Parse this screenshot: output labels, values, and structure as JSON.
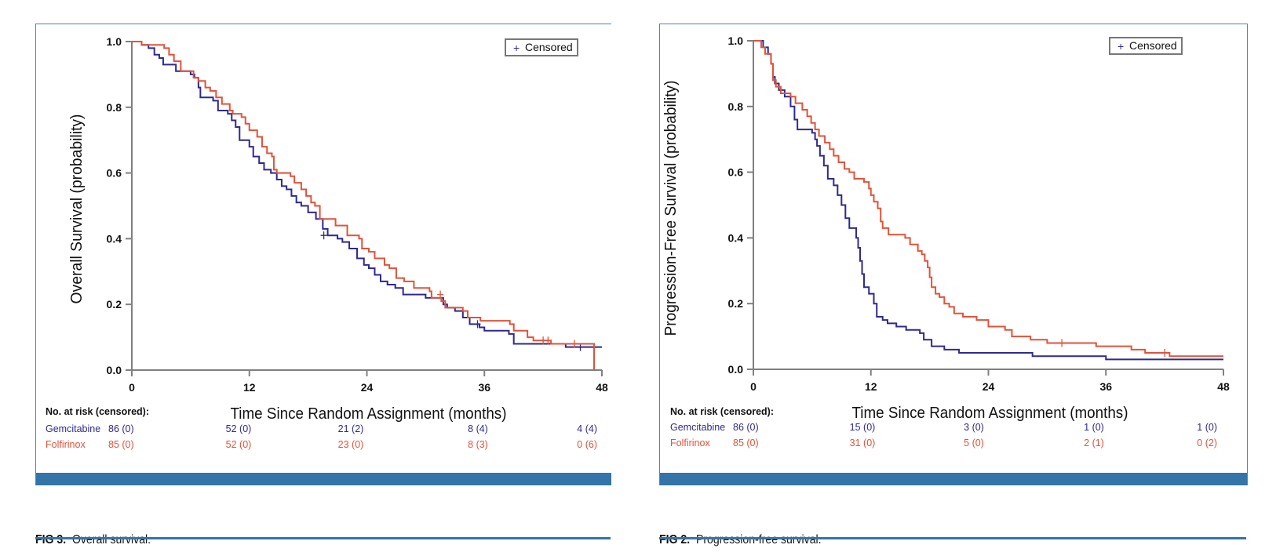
{
  "colors": {
    "gemcitabine": "#2e2a8c",
    "folfirinox": "#e0533a",
    "frame": "#4a86b8",
    "bar": "#3374a9",
    "axis": "#808080"
  },
  "figures": [
    {
      "caption_label": "FIG 3.",
      "caption_text": "Overall survival.",
      "legend_label": "Censored",
      "legend_symbol": "+",
      "risk_header": "No. at risk (censored):"
    },
    {
      "caption_label": "FIG 2.",
      "caption_text": "Progression-free survival.",
      "legend_label": "Censored",
      "legend_symbol": "+",
      "risk_header": "No. at risk (censored):"
    }
  ],
  "chart_data": [
    {
      "type": "line",
      "subtype": "kaplan-meier-step",
      "title": "Overall survival",
      "xlabel": "Time Since Random Assignment (months)",
      "ylabel": "Overall Survival (probability)",
      "xlim": [
        0,
        48
      ],
      "ylim": [
        0,
        1.0
      ],
      "xticks": [
        0,
        12,
        24,
        36,
        48
      ],
      "yticks": [
        0.0,
        0.2,
        0.4,
        0.6,
        0.8,
        1.0
      ],
      "ytick_labels": [
        "0.0",
        "0.2",
        "0.4",
        "0.6",
        "0.8",
        "1.0"
      ],
      "legend": {
        "entries": [
          "+ Censored"
        ],
        "position": "top-right"
      },
      "grid": false,
      "series": [
        {
          "name": "Gemcitabine",
          "color_key": "gemcitabine",
          "steps": [
            [
              0,
              1.0
            ],
            [
              1.0,
              0.99
            ],
            [
              1.7,
              0.98
            ],
            [
              2.3,
              0.96
            ],
            [
              2.8,
              0.95
            ],
            [
              3.2,
              0.93
            ],
            [
              4.5,
              0.91
            ],
            [
              6.0,
              0.9
            ],
            [
              6.4,
              0.89
            ],
            [
              6.8,
              0.86
            ],
            [
              7.0,
              0.83
            ],
            [
              8.3,
              0.82
            ],
            [
              8.8,
              0.79
            ],
            [
              9.8,
              0.78
            ],
            [
              10.2,
              0.76
            ],
            [
              10.6,
              0.74
            ],
            [
              11.0,
              0.7
            ],
            [
              12.0,
              0.68
            ],
            [
              12.4,
              0.65
            ],
            [
              13.0,
              0.63
            ],
            [
              13.5,
              0.61
            ],
            [
              14.2,
              0.6
            ],
            [
              14.8,
              0.58
            ],
            [
              15.3,
              0.56
            ],
            [
              15.8,
              0.55
            ],
            [
              16.3,
              0.53
            ],
            [
              16.8,
              0.51
            ],
            [
              17.3,
              0.5
            ],
            [
              18.0,
              0.48
            ],
            [
              18.8,
              0.46
            ],
            [
              19.5,
              0.43
            ],
            [
              20.0,
              0.41
            ],
            [
              21.0,
              0.4
            ],
            [
              21.5,
              0.39
            ],
            [
              22.2,
              0.37
            ],
            [
              23.0,
              0.34
            ],
            [
              23.7,
              0.32
            ],
            [
              24.2,
              0.31
            ],
            [
              24.8,
              0.29
            ],
            [
              25.4,
              0.27
            ],
            [
              26.1,
              0.26
            ],
            [
              26.9,
              0.25
            ],
            [
              27.7,
              0.23
            ],
            [
              28.8,
              0.23
            ],
            [
              30.0,
              0.22
            ],
            [
              31.5,
              0.22
            ],
            [
              31.8,
              0.2
            ],
            [
              32.2,
              0.19
            ],
            [
              33.0,
              0.18
            ],
            [
              33.8,
              0.16
            ],
            [
              34.5,
              0.14
            ],
            [
              35.5,
              0.13
            ],
            [
              36.0,
              0.12
            ],
            [
              38.5,
              0.11
            ],
            [
              39.0,
              0.08
            ],
            [
              44.3,
              0.07
            ],
            [
              48.0,
              0.07
            ]
          ],
          "censored": [
            [
              19.6,
              0.41
            ],
            [
              35.3,
              0.14
            ],
            [
              45.8,
              0.07
            ]
          ],
          "at_risk": [
            "86 (0)",
            "52 (0)",
            "21 (2)",
            "8 (4)",
            "4 (4)"
          ]
        },
        {
          "name": "Folfirinox",
          "color_key": "folfirinox",
          "steps": [
            [
              0,
              1.0
            ],
            [
              1.0,
              0.99
            ],
            [
              3.3,
              0.98
            ],
            [
              3.8,
              0.96
            ],
            [
              4.3,
              0.94
            ],
            [
              5.0,
              0.91
            ],
            [
              6.3,
              0.89
            ],
            [
              6.8,
              0.88
            ],
            [
              7.5,
              0.86
            ],
            [
              8.0,
              0.85
            ],
            [
              8.6,
              0.83
            ],
            [
              9.2,
              0.81
            ],
            [
              10.0,
              0.79
            ],
            [
              10.3,
              0.78
            ],
            [
              11.2,
              0.77
            ],
            [
              11.6,
              0.75
            ],
            [
              12.0,
              0.73
            ],
            [
              12.8,
              0.71
            ],
            [
              13.3,
              0.68
            ],
            [
              13.8,
              0.66
            ],
            [
              14.3,
              0.65
            ],
            [
              14.5,
              0.61
            ],
            [
              14.8,
              0.6
            ],
            [
              16.2,
              0.59
            ],
            [
              16.6,
              0.57
            ],
            [
              17.3,
              0.55
            ],
            [
              17.8,
              0.53
            ],
            [
              18.3,
              0.51
            ],
            [
              18.7,
              0.5
            ],
            [
              19.2,
              0.46
            ],
            [
              20.8,
              0.44
            ],
            [
              22.0,
              0.41
            ],
            [
              23.2,
              0.4
            ],
            [
              23.5,
              0.37
            ],
            [
              24.2,
              0.36
            ],
            [
              24.8,
              0.34
            ],
            [
              25.8,
              0.32
            ],
            [
              26.3,
              0.31
            ],
            [
              27.0,
              0.28
            ],
            [
              27.8,
              0.27
            ],
            [
              28.8,
              0.25
            ],
            [
              30.4,
              0.24
            ],
            [
              30.6,
              0.22
            ],
            [
              31.6,
              0.21
            ],
            [
              32.0,
              0.19
            ],
            [
              33.8,
              0.18
            ],
            [
              34.3,
              0.16
            ],
            [
              35.6,
              0.15
            ],
            [
              38.6,
              0.14
            ],
            [
              39.0,
              0.12
            ],
            [
              40.4,
              0.1
            ],
            [
              41.0,
              0.09
            ],
            [
              42.8,
              0.08
            ],
            [
              47.2,
              0.08
            ],
            [
              47.2,
              0.0
            ]
          ],
          "censored": [
            [
              31.5,
              0.23
            ],
            [
              42.0,
              0.09
            ],
            [
              42.5,
              0.09
            ],
            [
              45.2,
              0.08
            ]
          ],
          "at_risk": [
            "85 (0)",
            "52 (0)",
            "23 (0)",
            "8 (3)",
            "0 (6)"
          ]
        }
      ]
    },
    {
      "type": "line",
      "subtype": "kaplan-meier-step",
      "title": "Progression-free survival",
      "xlabel": "Time Since Random Assignment (months)",
      "ylabel": "Progression-Free Survival (probability)",
      "xlim": [
        0,
        48
      ],
      "ylim": [
        0,
        1.0
      ],
      "xticks": [
        0,
        12,
        24,
        36,
        48
      ],
      "yticks": [
        0.0,
        0.2,
        0.4,
        0.6,
        0.8,
        1.0
      ],
      "ytick_labels": [
        "0.0",
        "0.2",
        "0.4",
        "0.6",
        "0.8",
        "1.0"
      ],
      "legend": {
        "entries": [
          "+ Censored"
        ],
        "position": "top-right"
      },
      "grid": false,
      "series": [
        {
          "name": "Gemcitabine",
          "color_key": "gemcitabine",
          "steps": [
            [
              0,
              1.0
            ],
            [
              1.0,
              0.98
            ],
            [
              1.5,
              0.96
            ],
            [
              1.8,
              0.93
            ],
            [
              2.0,
              0.89
            ],
            [
              2.2,
              0.87
            ],
            [
              2.6,
              0.85
            ],
            [
              3.2,
              0.83
            ],
            [
              3.8,
              0.8
            ],
            [
              4.2,
              0.76
            ],
            [
              4.5,
              0.73
            ],
            [
              6.0,
              0.72
            ],
            [
              6.3,
              0.7
            ],
            [
              6.5,
              0.68
            ],
            [
              6.8,
              0.65
            ],
            [
              7.2,
              0.62
            ],
            [
              7.6,
              0.58
            ],
            [
              8.2,
              0.56
            ],
            [
              8.6,
              0.53
            ],
            [
              9.0,
              0.5
            ],
            [
              9.4,
              0.46
            ],
            [
              9.8,
              0.43
            ],
            [
              10.5,
              0.4
            ],
            [
              10.7,
              0.37
            ],
            [
              10.9,
              0.33
            ],
            [
              11.1,
              0.29
            ],
            [
              11.3,
              0.25
            ],
            [
              11.8,
              0.23
            ],
            [
              12.3,
              0.2
            ],
            [
              12.6,
              0.16
            ],
            [
              13.2,
              0.15
            ],
            [
              13.7,
              0.14
            ],
            [
              14.6,
              0.13
            ],
            [
              15.6,
              0.12
            ],
            [
              17.0,
              0.11
            ],
            [
              17.4,
              0.09
            ],
            [
              18.2,
              0.07
            ],
            [
              19.5,
              0.06
            ],
            [
              21.0,
              0.05
            ],
            [
              28.5,
              0.04
            ],
            [
              36.0,
              0.03
            ],
            [
              48.0,
              0.03
            ]
          ],
          "censored": [],
          "at_risk": [
            "86 (0)",
            "15 (0)",
            "3 (0)",
            "1 (0)",
            "1 (0)"
          ]
        },
        {
          "name": "Folfirinox",
          "color_key": "folfirinox",
          "steps": [
            [
              0,
              1.0
            ],
            [
              0.8,
              0.98
            ],
            [
              1.2,
              0.96
            ],
            [
              1.8,
              0.93
            ],
            [
              2.0,
              0.88
            ],
            [
              2.3,
              0.86
            ],
            [
              2.8,
              0.84
            ],
            [
              3.8,
              0.83
            ],
            [
              4.3,
              0.81
            ],
            [
              5.0,
              0.79
            ],
            [
              5.5,
              0.77
            ],
            [
              5.9,
              0.75
            ],
            [
              6.3,
              0.73
            ],
            [
              6.7,
              0.71
            ],
            [
              7.3,
              0.69
            ],
            [
              7.8,
              0.67
            ],
            [
              8.2,
              0.65
            ],
            [
              8.7,
              0.63
            ],
            [
              9.3,
              0.61
            ],
            [
              9.8,
              0.6
            ],
            [
              10.3,
              0.58
            ],
            [
              11.3,
              0.57
            ],
            [
              11.8,
              0.55
            ],
            [
              12.0,
              0.53
            ],
            [
              12.3,
              0.51
            ],
            [
              12.7,
              0.49
            ],
            [
              13.0,
              0.45
            ],
            [
              13.2,
              0.43
            ],
            [
              13.8,
              0.41
            ],
            [
              15.5,
              0.4
            ],
            [
              16.0,
              0.38
            ],
            [
              16.8,
              0.36
            ],
            [
              17.2,
              0.35
            ],
            [
              17.5,
              0.33
            ],
            [
              17.8,
              0.31
            ],
            [
              18.0,
              0.28
            ],
            [
              18.2,
              0.25
            ],
            [
              18.6,
              0.23
            ],
            [
              19.0,
              0.22
            ],
            [
              19.5,
              0.2
            ],
            [
              20.0,
              0.19
            ],
            [
              20.5,
              0.17
            ],
            [
              21.4,
              0.16
            ],
            [
              22.8,
              0.15
            ],
            [
              24.0,
              0.13
            ],
            [
              25.7,
              0.12
            ],
            [
              26.4,
              0.1
            ],
            [
              28.3,
              0.09
            ],
            [
              30.0,
              0.08
            ],
            [
              35.0,
              0.07
            ],
            [
              38.6,
              0.06
            ],
            [
              40.0,
              0.05
            ],
            [
              42.5,
              0.04
            ],
            [
              48.0,
              0.04
            ]
          ],
          "censored": [
            [
              31.5,
              0.08
            ],
            [
              42.0,
              0.05
            ]
          ],
          "at_risk": [
            "85 (0)",
            "31 (0)",
            "5 (0)",
            "2 (1)",
            "0 (2)"
          ]
        }
      ]
    }
  ]
}
